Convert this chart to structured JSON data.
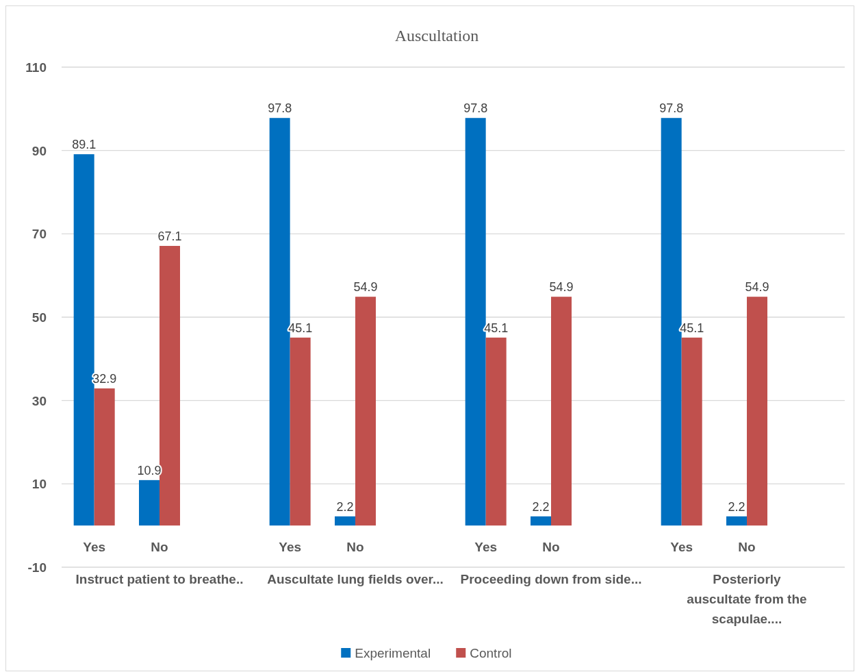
{
  "chart_data": {
    "type": "bar",
    "title": "Auscultation",
    "categories": [
      "Yes",
      "No",
      "Yes",
      "No",
      "Yes",
      "No",
      "Yes",
      "No"
    ],
    "series": [
      {
        "name": "Experimental",
        "color": "#0070c0",
        "values": [
          89.1,
          10.9,
          97.8,
          2.2,
          97.8,
          2.2,
          97.8,
          2.2
        ]
      },
      {
        "name": "Control",
        "color": "#c0504d",
        "values": [
          32.9,
          67.1,
          45.1,
          54.9,
          45.1,
          54.9,
          45.1,
          54.9
        ]
      }
    ],
    "annotations": [
      "Instruct patient to breathe..",
      "Auscultate lung fields over...",
      "Proceeding down from side...",
      "Posteriorly auscultate from the scapulae...."
    ],
    "ylim": [
      -10,
      110
    ],
    "yticks": [
      -10,
      10,
      30,
      50,
      70,
      90,
      110
    ],
    "grid": "y",
    "legend": "bottom",
    "data_labels": true
  }
}
